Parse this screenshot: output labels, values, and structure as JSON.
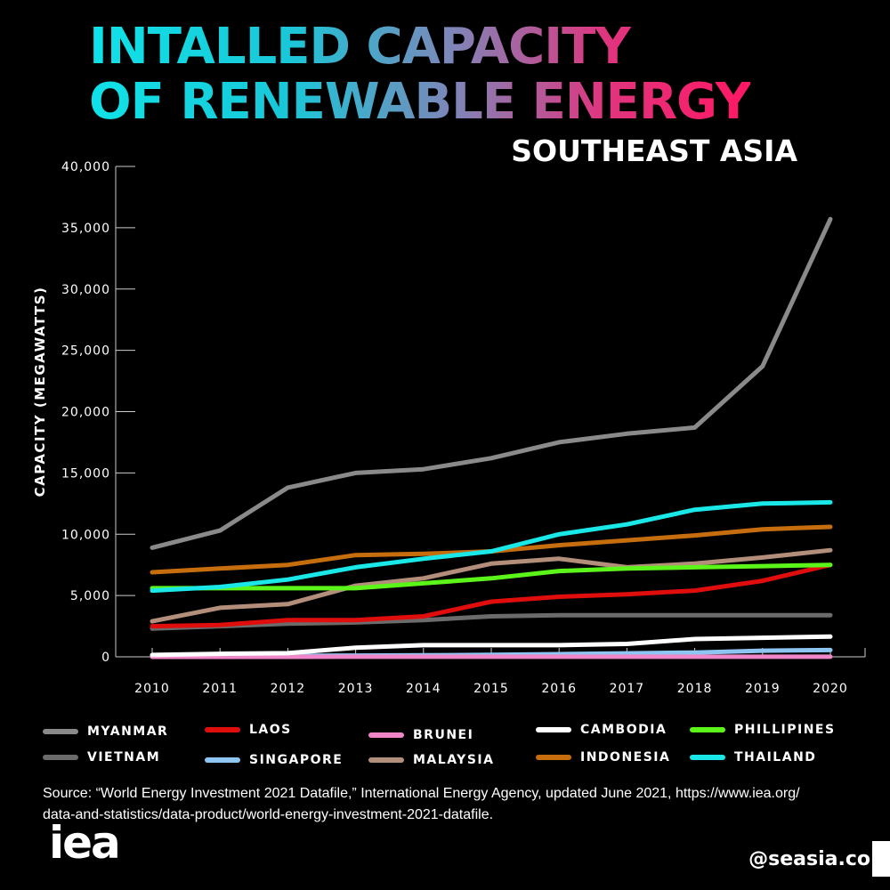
{
  "header": {
    "title_line1": "INTALLED CAPACITY",
    "title_line2": "OF RENEWABLE ENERGY",
    "subtitle": "SOUTHEAST ASIA"
  },
  "chart_data": {
    "type": "line",
    "title": "INTALLED CAPACITY OF RENEWABLE ENERGY",
    "subtitle": "SOUTHEAST ASIA",
    "xlabel": "",
    "ylabel": "CAPACITY (MEGAWATTS)",
    "ylim": [
      0,
      40000
    ],
    "yticks": [
      0,
      5000,
      10000,
      15000,
      20000,
      25000,
      30000,
      35000,
      40000
    ],
    "ytick_labels": [
      "0",
      "5,000",
      "10,000",
      "15,000",
      "20,000",
      "25,000",
      "30,000",
      "35,000",
      "40,000"
    ],
    "x": [
      "2010",
      "2011",
      "2012",
      "2013",
      "2014",
      "2015",
      "2016",
      "2017",
      "2018",
      "2019",
      "2020"
    ],
    "grid": false,
    "legend_position": "bottom",
    "series": [
      {
        "name": "MYANMAR",
        "color": "#8a8a8a",
        "values": [
          8900,
          10300,
          13800,
          15000,
          15300,
          16200,
          17500,
          18200,
          18700,
          23700,
          35700
        ]
      },
      {
        "name": "VIETNAM",
        "color": "#6b6b6b",
        "values": [
          2300,
          2500,
          2700,
          2800,
          3000,
          3300,
          3400,
          3400,
          3400,
          3400,
          3400
        ]
      },
      {
        "name": "LAOS",
        "color": "#e00d0d",
        "values": [
          2500,
          2600,
          3000,
          3000,
          3300,
          4500,
          4900,
          5100,
          5400,
          6200,
          7500
        ]
      },
      {
        "name": "SINGAPORE",
        "color": "#8ec5f2",
        "values": [
          50,
          60,
          80,
          100,
          120,
          160,
          220,
          280,
          350,
          500,
          550
        ]
      },
      {
        "name": "BRUNEI",
        "color": "#ef86c8",
        "values": [
          0,
          0,
          0,
          10,
          10,
          10,
          10,
          10,
          10,
          10,
          10
        ]
      },
      {
        "name": "MALAYSIA",
        "color": "#b38e7a",
        "values": [
          2900,
          4000,
          4300,
          5800,
          6400,
          7600,
          8000,
          7300,
          7600,
          8100,
          8700
        ]
      },
      {
        "name": "CAMBODIA",
        "color": "#ffffff",
        "values": [
          150,
          250,
          300,
          750,
          950,
          950,
          950,
          1050,
          1450,
          1550,
          1650
        ]
      },
      {
        "name": "INDONESIA",
        "color": "#c66d0e",
        "values": [
          6900,
          7200,
          7500,
          8300,
          8400,
          8600,
          9100,
          9500,
          9900,
          10400,
          10600
        ]
      },
      {
        "name": "PHILLIPINES",
        "color": "#5cf51a",
        "values": [
          5600,
          5600,
          5600,
          5600,
          6000,
          6400,
          7000,
          7200,
          7300,
          7400,
          7500
        ]
      },
      {
        "name": "THAILAND",
        "color": "#1ae8e8",
        "values": [
          5400,
          5700,
          6300,
          7300,
          8000,
          8600,
          10000,
          10800,
          12000,
          12500,
          12600
        ]
      }
    ]
  },
  "legend": {
    "items": [
      {
        "label": "MYANMAR",
        "color": "#8a8a8a"
      },
      {
        "label": "LAOS",
        "color": "#e00d0d"
      },
      {
        "label": "BRUNEI",
        "color": "#ef86c8"
      },
      {
        "label": "CAMBODIA",
        "color": "#ffffff"
      },
      {
        "label": "PHILLIPINES",
        "color": "#5cf51a"
      },
      {
        "label": "VIETNAM",
        "color": "#6b6b6b"
      },
      {
        "label": "SINGAPORE",
        "color": "#8ec5f2"
      },
      {
        "label": "MALAYSIA",
        "color": "#b38e7a"
      },
      {
        "label": "INDONESIA",
        "color": "#c66d0e"
      },
      {
        "label": "THAILAND",
        "color": "#1ae8e8"
      }
    ]
  },
  "footer": {
    "source_line1": "Source: “World Energy Investment 2021 Datafile,” International Energy Agency, updated June 2021,  https://www.iea.org/",
    "source_line2": "data-and-statistics/data-product/world-energy-investment-2021-datafile.",
    "logo": "iea",
    "handle": "@seasia.co"
  }
}
